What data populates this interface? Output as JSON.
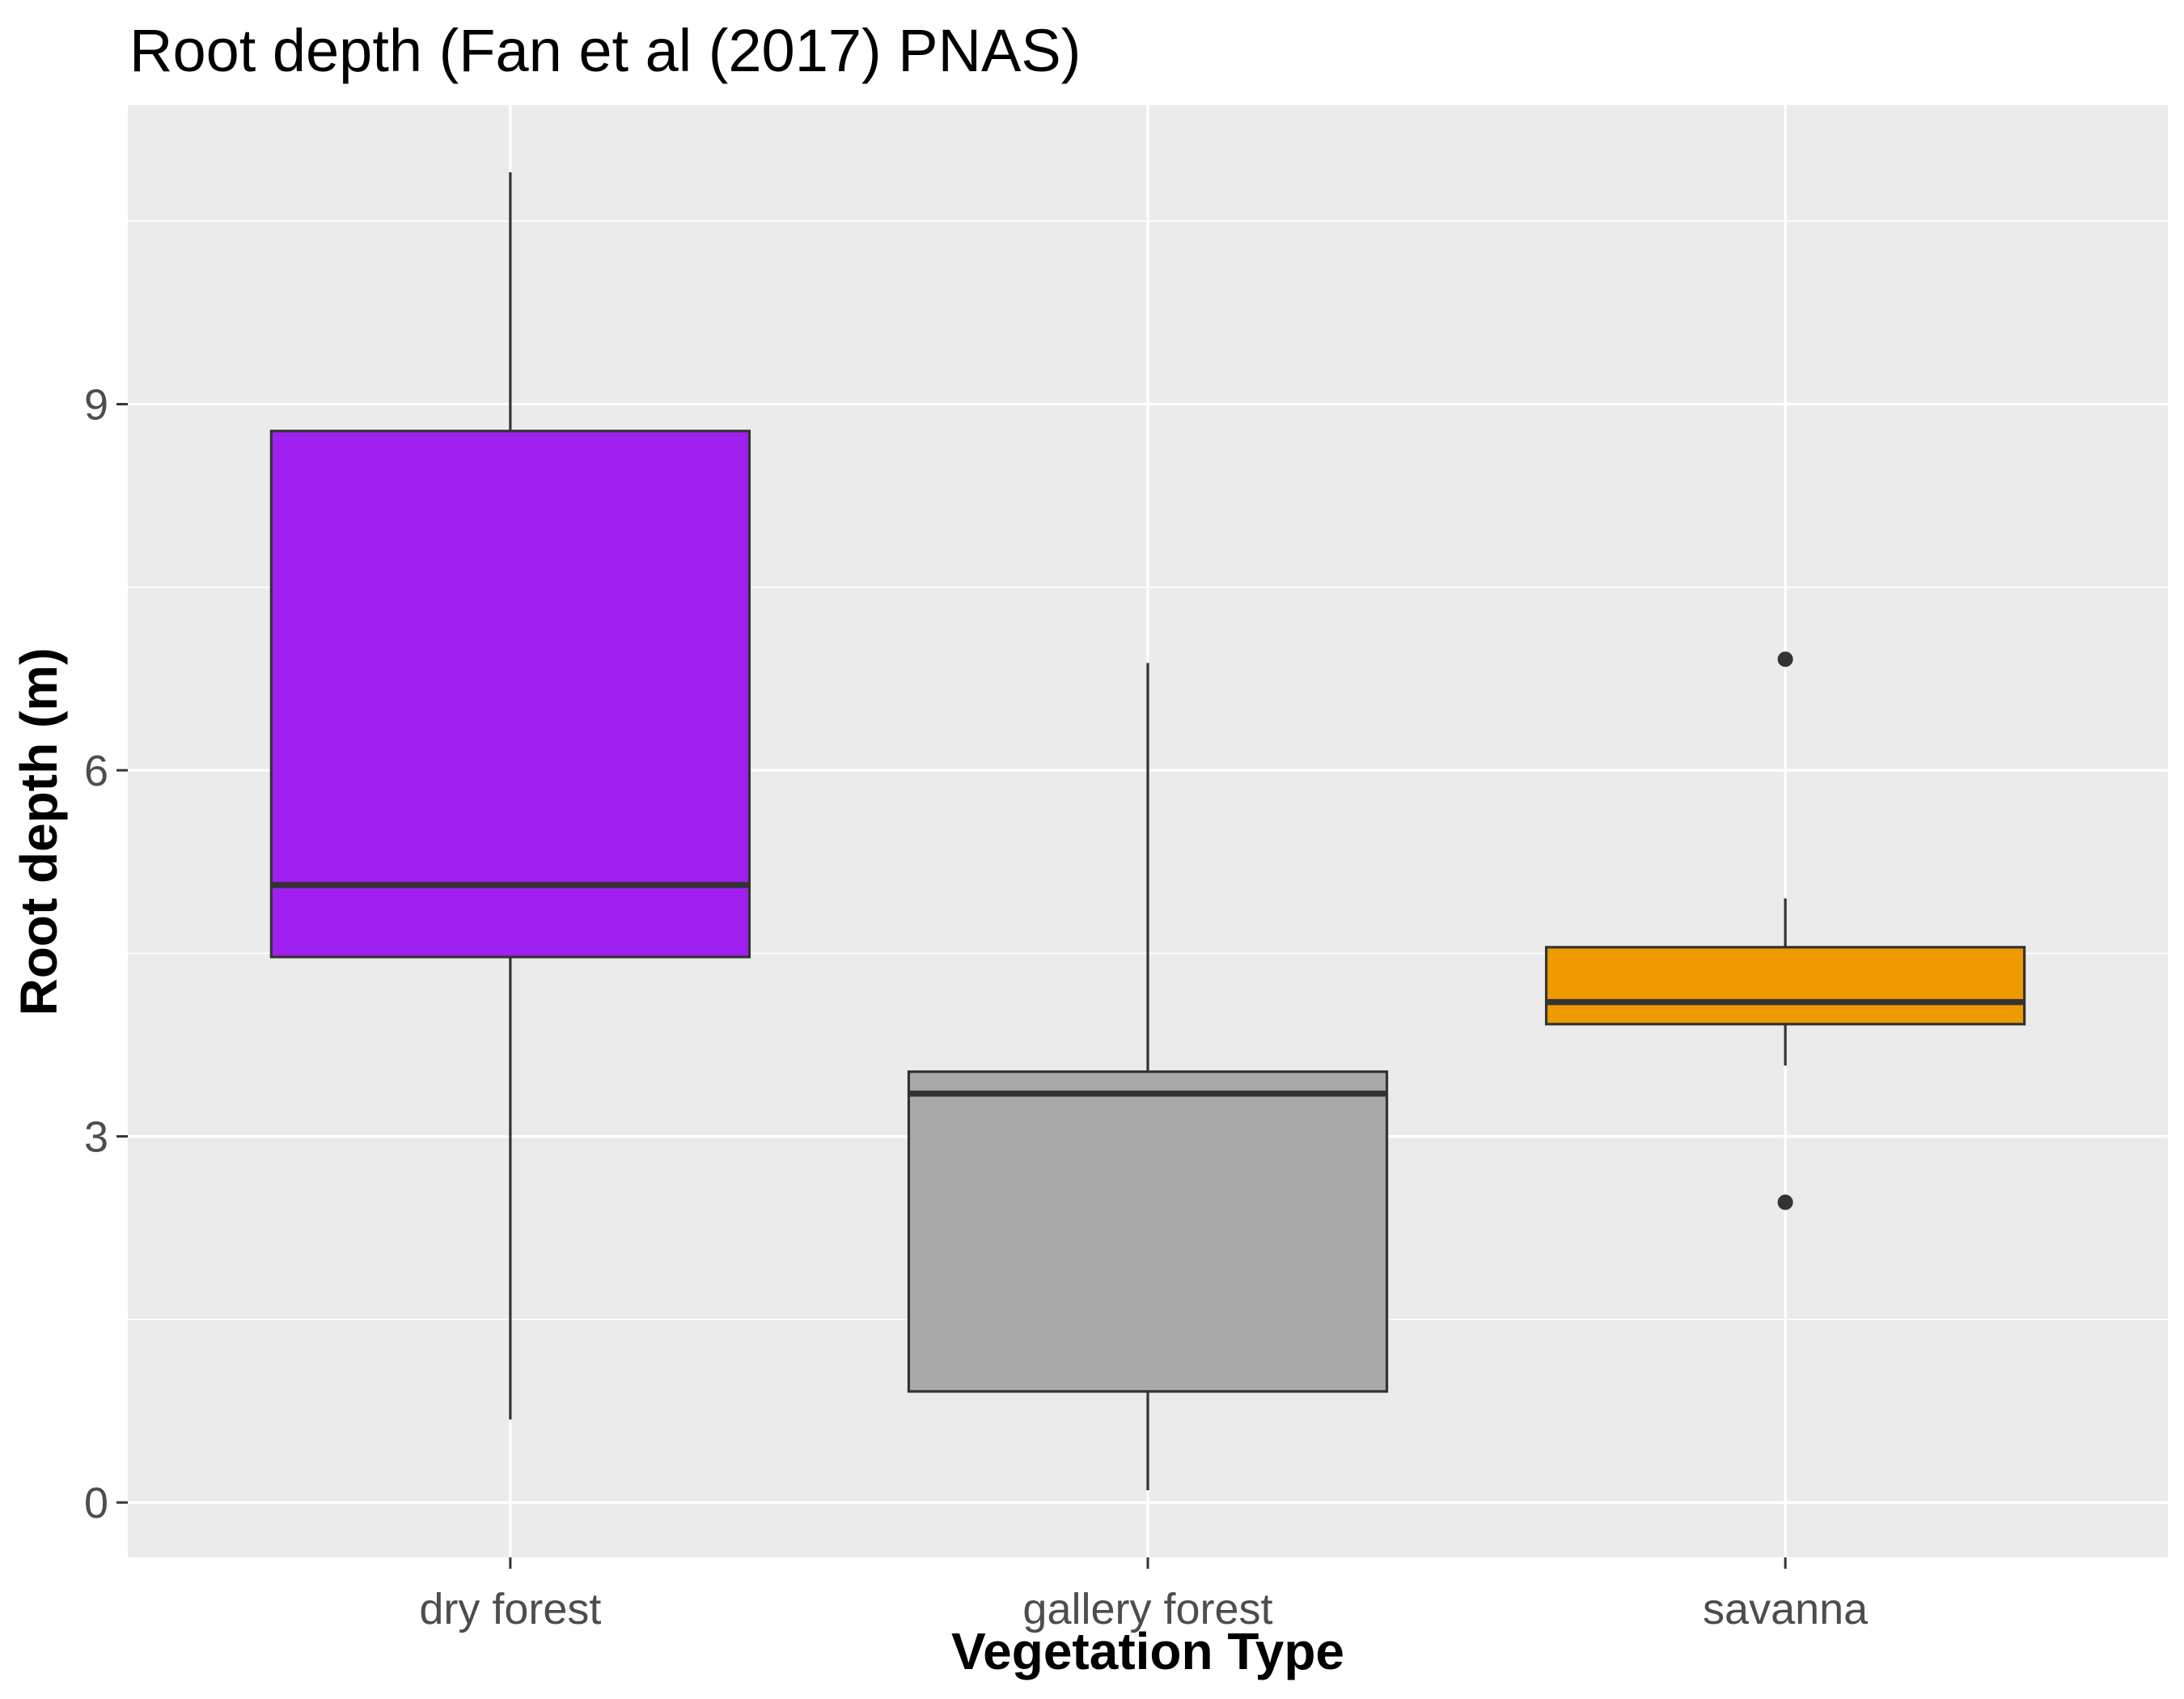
{
  "chart_data": {
    "type": "boxplot",
    "title": "Root depth (Fan et al (2017) PNAS)",
    "xlabel": "Vegetation Type",
    "ylabel": "Root depth (m)",
    "ylim": [
      -0.45,
      11.45
    ],
    "yticks": [
      0,
      3,
      6,
      9
    ],
    "grid": true,
    "background": "#ebebeb",
    "gridline_color": "#ffffff",
    "outline_color": "#333333",
    "categories": [
      "dry forest",
      "gallery forest",
      "savanna"
    ],
    "boxes": [
      {
        "category": "dry forest",
        "whisker_low": 0.68,
        "q1": 4.47,
        "median": 5.06,
        "q3": 8.78,
        "whisker_high": 10.9,
        "outliers": [],
        "fill": "#a020f0"
      },
      {
        "category": "gallery forest",
        "whisker_low": 0.1,
        "q1": 0.91,
        "median": 3.35,
        "q3": 3.53,
        "whisker_high": 6.88,
        "outliers": [],
        "fill": "#a9a9a9"
      },
      {
        "category": "savanna",
        "whisker_low": 3.58,
        "q1": 3.92,
        "median": 4.1,
        "q3": 4.55,
        "whisker_high": 4.95,
        "outliers": [
          6.91,
          2.46
        ],
        "fill": "#ee9a00"
      }
    ]
  }
}
